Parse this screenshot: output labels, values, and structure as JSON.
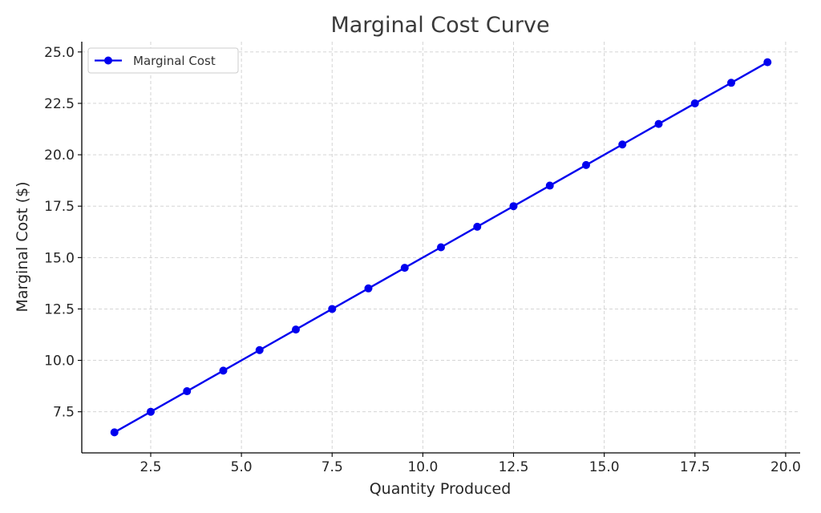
{
  "chart_data": {
    "type": "line",
    "title": "Marginal Cost Curve",
    "xlabel": "Quantity Produced",
    "ylabel": "Marginal Cost ($)",
    "xlim": [
      0.6,
      20.4
    ],
    "ylim": [
      5.5,
      25.5
    ],
    "xticks": [
      "2.5",
      "5.0",
      "7.5",
      "10.0",
      "12.5",
      "15.0",
      "17.5",
      "20.0"
    ],
    "yticks": [
      "7.5",
      "10.0",
      "12.5",
      "15.0",
      "17.5",
      "20.0",
      "22.5",
      "25.0"
    ],
    "grid": true,
    "legend_position": "top-left",
    "series": [
      {
        "name": "Marginal Cost",
        "color": "#0000ee",
        "marker": "circle",
        "x": [
          1.5,
          2.5,
          3.5,
          4.5,
          5.5,
          6.5,
          7.5,
          8.5,
          9.5,
          10.5,
          11.5,
          12.5,
          13.5,
          14.5,
          15.5,
          16.5,
          17.5,
          18.5,
          19.5
        ],
        "y": [
          6.5,
          7.5,
          8.5,
          9.5,
          10.5,
          11.5,
          12.5,
          13.5,
          14.5,
          15.5,
          16.5,
          17.5,
          18.5,
          19.5,
          20.5,
          21.5,
          22.5,
          23.5,
          24.5
        ]
      }
    ]
  }
}
